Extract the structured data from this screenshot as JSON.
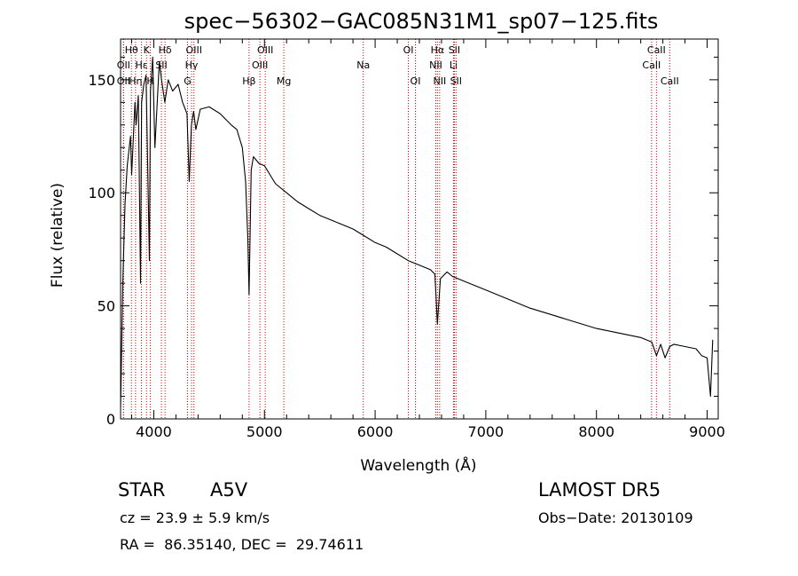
{
  "chart_data": {
    "type": "line",
    "title": "spec−56302−GAC085N31M1_sp07−125.fits",
    "xlabel": "Wavelength (Å)",
    "ylabel": "Flux (relative)",
    "xlim": [
      3700,
      9100
    ],
    "ylim": [
      0,
      168
    ],
    "xticks": [
      4000,
      5000,
      6000,
      7000,
      8000,
      9000
    ],
    "yticks": [
      0,
      50,
      100,
      150
    ],
    "grid": false,
    "series": [
      {
        "line_color": "#000000",
        "x": [
          3700,
          3720,
          3740,
          3760,
          3790,
          3800,
          3830,
          3840,
          3860,
          3880,
          3890,
          3910,
          3930,
          3960,
          3970,
          3990,
          4010,
          4050,
          4070,
          4100,
          4130,
          4170,
          4220,
          4260,
          4300,
          4320,
          4340,
          4360,
          4380,
          4420,
          4500,
          4600,
          4700,
          4750,
          4800,
          4830,
          4850,
          4861,
          4880,
          4900,
          4950,
          5000,
          5050,
          5100,
          5200,
          5300,
          5400,
          5500,
          5600,
          5700,
          5800,
          5900,
          6000,
          6100,
          6200,
          6300,
          6400,
          6500,
          6540,
          6563,
          6590,
          6650,
          6700,
          6800,
          7000,
          7200,
          7400,
          7600,
          7800,
          8000,
          8200,
          8400,
          8500,
          8542,
          8580,
          8620,
          8662,
          8700,
          8800,
          8900,
          8950,
          9000,
          9030,
          9050
        ],
        "y": [
          5,
          60,
          95,
          112,
          125,
          108,
          140,
          130,
          143,
          60,
          140,
          148,
          152,
          70,
          145,
          160,
          120,
          158,
          150,
          140,
          150,
          145,
          148,
          140,
          135,
          105,
          130,
          136,
          128,
          137,
          138,
          135,
          130,
          128,
          120,
          105,
          80,
          55,
          110,
          116,
          113,
          112,
          108,
          104,
          100,
          96,
          93,
          90,
          88,
          86,
          84,
          81,
          78,
          76,
          73,
          70,
          68,
          66,
          64,
          42,
          62,
          65,
          63,
          61,
          57,
          53,
          49,
          46,
          43,
          40,
          38,
          36,
          34,
          28,
          33,
          27,
          32,
          33,
          32,
          31,
          28,
          27,
          10,
          35
        ]
      }
    ],
    "line_colors": {
      "lines": "#cc0000",
      "spectrum": "#000000"
    },
    "line_markers": [
      {
        "label": "Hθ",
        "x": 3798,
        "row": 0
      },
      {
        "label": "OII",
        "x": 3727,
        "row": 1
      },
      {
        "label": "OII",
        "x": 3727,
        "row": 2
      },
      {
        "label": "Hη",
        "x": 3835,
        "row": 2
      },
      {
        "label": "Hε",
        "x": 3889,
        "row": 1
      },
      {
        "label": "K",
        "x": 3934,
        "row": 0
      },
      {
        "label": "H",
        "x": 3969,
        "row": 2
      },
      {
        "label": "SII",
        "x": 4069,
        "row": 1
      },
      {
        "label": "Hδ",
        "x": 4102,
        "row": 0
      },
      {
        "label": "OIII",
        "x": 4363,
        "row": 0
      },
      {
        "label": "Hγ",
        "x": 4341,
        "row": 1
      },
      {
        "label": "G",
        "x": 4305,
        "row": 2
      },
      {
        "label": "Hβ",
        "x": 4861,
        "row": 2
      },
      {
        "label": "OIII",
        "x": 5007,
        "row": 0
      },
      {
        "label": "OIII",
        "x": 4959,
        "row": 1
      },
      {
        "label": "Mg",
        "x": 5175,
        "row": 2
      },
      {
        "label": "Na",
        "x": 5893,
        "row": 1
      },
      {
        "label": "OI",
        "x": 6300,
        "row": 0
      },
      {
        "label": "OI",
        "x": 6364,
        "row": 2
      },
      {
        "label": "Hα",
        "x": 6563,
        "row": 0
      },
      {
        "label": "NII",
        "x": 6548,
        "row": 1
      },
      {
        "label": "NII",
        "x": 6583,
        "row": 2
      },
      {
        "label": "SII",
        "x": 6716,
        "row": 0
      },
      {
        "label": "Li",
        "x": 6708,
        "row": 1
      },
      {
        "label": "SII",
        "x": 6731,
        "row": 2
      },
      {
        "label": "CaII",
        "x": 8542,
        "row": 0
      },
      {
        "label": "CaII",
        "x": 8498,
        "row": 1
      },
      {
        "label": "CaII",
        "x": 8662,
        "row": 2
      }
    ]
  },
  "info": {
    "object_class": "STAR",
    "subclass": "A5V",
    "survey": "LAMOST DR5",
    "cz": "cz = 23.9 ± 5.9 km/s",
    "obs_date": "Obs−Date: 20130109",
    "radec": "RA =  86.35140, DEC =  29.74611"
  }
}
